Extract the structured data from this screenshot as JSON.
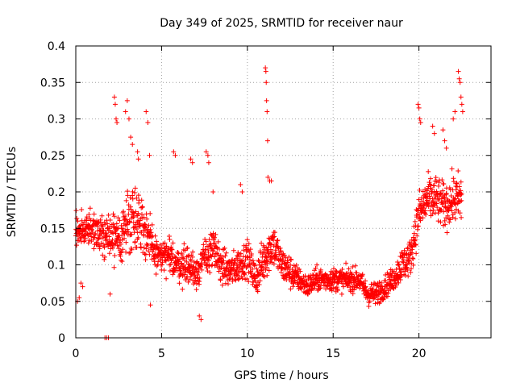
{
  "chart_data": {
    "type": "scatter",
    "title": "Day 349 of 2025, SRMTID for receiver naur",
    "xlabel": "GPS time / hours",
    "ylabel": "SRMTID / TECUs",
    "xlim": [
      0,
      24.2
    ],
    "ylim": [
      0,
      0.4
    ],
    "xticks": [
      0,
      5,
      10,
      15,
      20
    ],
    "xtick_labels": [
      "0",
      "5",
      "10",
      "15",
      "20"
    ],
    "yticks": [
      0,
      0.05,
      0.1,
      0.15,
      0.2,
      0.25,
      0.3,
      0.35,
      0.4
    ],
    "ytick_labels": [
      "0",
      "0.05",
      "0.1",
      "0.15",
      "0.2",
      "0.25",
      "0.3",
      "0.35",
      "0.4"
    ],
    "grid": true,
    "marker": "plus",
    "marker_color": "#ff0000",
    "envelope": {
      "description": "Approximate median and spread of the dense cloud of points (hours, TECU)",
      "x": [
        0.0,
        0.5,
        1.0,
        1.5,
        2.0,
        2.5,
        3.0,
        3.5,
        4.0,
        4.5,
        5.0,
        5.5,
        6.0,
        6.5,
        7.0,
        7.5,
        8.0,
        8.5,
        9.0,
        9.5,
        10.0,
        10.5,
        11.0,
        11.5,
        12.0,
        12.5,
        13.0,
        13.5,
        14.0,
        14.5,
        15.0,
        15.5,
        16.0,
        16.5,
        17.0,
        17.5,
        18.0,
        18.5,
        19.0,
        19.5,
        20.0,
        20.5,
        21.0,
        21.5,
        22.0,
        22.5
      ],
      "median": [
        0.15,
        0.15,
        0.15,
        0.14,
        0.14,
        0.13,
        0.16,
        0.17,
        0.15,
        0.12,
        0.11,
        0.11,
        0.1,
        0.1,
        0.09,
        0.11,
        0.12,
        0.1,
        0.09,
        0.1,
        0.11,
        0.08,
        0.11,
        0.13,
        0.1,
        0.09,
        0.08,
        0.07,
        0.08,
        0.08,
        0.08,
        0.08,
        0.08,
        0.08,
        0.06,
        0.06,
        0.07,
        0.08,
        0.1,
        0.11,
        0.17,
        0.19,
        0.19,
        0.18,
        0.19,
        0.19
      ],
      "spread": [
        0.03,
        0.03,
        0.03,
        0.03,
        0.04,
        0.04,
        0.06,
        0.06,
        0.05,
        0.03,
        0.03,
        0.03,
        0.03,
        0.03,
        0.03,
        0.03,
        0.04,
        0.03,
        0.03,
        0.03,
        0.03,
        0.03,
        0.04,
        0.04,
        0.03,
        0.03,
        0.02,
        0.02,
        0.02,
        0.02,
        0.02,
        0.02,
        0.02,
        0.02,
        0.02,
        0.02,
        0.02,
        0.02,
        0.03,
        0.03,
        0.04,
        0.04,
        0.04,
        0.04,
        0.04,
        0.05
      ]
    },
    "notable_points": {
      "x": [
        0.1,
        0.2,
        0.3,
        0.4,
        1.7,
        1.8,
        1.9,
        2.0,
        2.25,
        2.3,
        2.35,
        2.4,
        2.9,
        3.0,
        3.1,
        3.2,
        3.3,
        3.6,
        3.65,
        4.1,
        4.2,
        4.3,
        4.35,
        5.7,
        5.8,
        6.7,
        6.8,
        7.2,
        7.3,
        7.6,
        7.7,
        7.75,
        8.0,
        9.6,
        9.7,
        11.05,
        11.08,
        11.1,
        11.12,
        11.15,
        11.18,
        11.2,
        11.3,
        11.4,
        19.95,
        20.0,
        20.05,
        20.1,
        20.8,
        20.9,
        21.4,
        21.5,
        21.6,
        22.0,
        22.1,
        22.3,
        22.35,
        22.4,
        22.45,
        22.5,
        22.55
      ],
      "y": [
        0.05,
        0.055,
        0.075,
        0.07,
        0.0,
        0.0,
        0.0,
        0.06,
        0.33,
        0.32,
        0.3,
        0.295,
        0.31,
        0.325,
        0.3,
        0.275,
        0.265,
        0.255,
        0.245,
        0.31,
        0.295,
        0.25,
        0.045,
        0.255,
        0.25,
        0.245,
        0.24,
        0.03,
        0.025,
        0.255,
        0.25,
        0.24,
        0.2,
        0.21,
        0.2,
        0.37,
        0.365,
        0.35,
        0.325,
        0.31,
        0.27,
        0.22,
        0.215,
        0.215,
        0.32,
        0.315,
        0.3,
        0.295,
        0.29,
        0.28,
        0.285,
        0.27,
        0.26,
        0.3,
        0.31,
        0.365,
        0.355,
        0.35,
        0.33,
        0.32,
        0.31
      ]
    }
  }
}
